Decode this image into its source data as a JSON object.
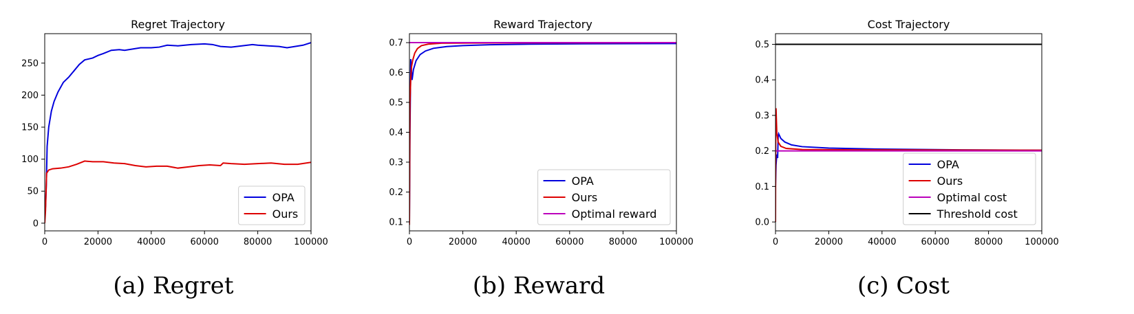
{
  "colors": {
    "OPA": "#0000dd",
    "Ours": "#dd0000",
    "Optimal reward": "#bb00bb",
    "Optimal cost": "#bb00bb",
    "Threshold cost": "#000000"
  },
  "chart_data": [
    {
      "type": "line",
      "title": "Regret Trajectory",
      "caption": "(a) Regret",
      "xlim": [
        0,
        100000
      ],
      "ylim": [
        -12,
        296
      ],
      "xticks": [
        0,
        20000,
        40000,
        60000,
        80000,
        100000
      ],
      "yticks": [
        0,
        50,
        100,
        150,
        200,
        250
      ],
      "grid": false,
      "legend_position": "lower-right",
      "series": [
        {
          "name": "OPA",
          "points": [
            [
              0,
              20
            ],
            [
              300,
              25
            ],
            [
              600,
              60
            ],
            [
              900,
              120
            ],
            [
              1500,
              150
            ],
            [
              2500,
              175
            ],
            [
              3500,
              190
            ],
            [
              5000,
              205
            ],
            [
              7000,
              220
            ],
            [
              9000,
              228
            ],
            [
              11000,
              238
            ],
            [
              13000,
              248
            ],
            [
              15000,
              255
            ],
            [
              18000,
              258
            ],
            [
              20000,
              262
            ],
            [
              22000,
              265
            ],
            [
              25000,
              270
            ],
            [
              28000,
              271
            ],
            [
              30000,
              270
            ],
            [
              33000,
              272
            ],
            [
              36000,
              274
            ],
            [
              40000,
              274
            ],
            [
              43000,
              275
            ],
            [
              46000,
              278
            ],
            [
              50000,
              277
            ],
            [
              55000,
              279
            ],
            [
              60000,
              280
            ],
            [
              63000,
              279
            ],
            [
              66000,
              276
            ],
            [
              70000,
              275
            ],
            [
              74000,
              277
            ],
            [
              78000,
              279
            ],
            [
              80000,
              278
            ],
            [
              84000,
              277
            ],
            [
              88000,
              276
            ],
            [
              91000,
              274
            ],
            [
              94000,
              276
            ],
            [
              97000,
              278
            ],
            [
              100000,
              282
            ]
          ]
        },
        {
          "name": "Ours",
          "points": [
            [
              0,
              0
            ],
            [
              300,
              20
            ],
            [
              700,
              78
            ],
            [
              1500,
              83
            ],
            [
              3000,
              85
            ],
            [
              6000,
              86
            ],
            [
              9000,
              88
            ],
            [
              12000,
              92
            ],
            [
              15000,
              97
            ],
            [
              18000,
              96
            ],
            [
              22000,
              96
            ],
            [
              26000,
              94
            ],
            [
              30000,
              93
            ],
            [
              34000,
              90
            ],
            [
              38000,
              88
            ],
            [
              42000,
              89
            ],
            [
              46000,
              89
            ],
            [
              50000,
              86
            ],
            [
              54000,
              88
            ],
            [
              58000,
              90
            ],
            [
              62000,
              91
            ],
            [
              66000,
              90
            ],
            [
              67000,
              94
            ],
            [
              70000,
              93
            ],
            [
              75000,
              92
            ],
            [
              80000,
              93
            ],
            [
              85000,
              94
            ],
            [
              90000,
              92
            ],
            [
              95000,
              92
            ],
            [
              100000,
              95
            ]
          ]
        }
      ]
    },
    {
      "type": "line",
      "title": "Reward Trajectory",
      "caption": "(b) Reward",
      "xlim": [
        0,
        100000
      ],
      "ylim": [
        0.07,
        0.73
      ],
      "xticks": [
        0,
        20000,
        40000,
        60000,
        80000,
        100000
      ],
      "yticks": [
        0.1,
        0.2,
        0.3,
        0.4,
        0.5,
        0.6,
        0.7
      ],
      "grid": false,
      "legend_position": "lower-right",
      "series": [
        {
          "name": "OPA",
          "points": [
            [
              0,
              0.1
            ],
            [
              200,
              0.4
            ],
            [
              500,
              0.645
            ],
            [
              800,
              0.6
            ],
            [
              1000,
              0.575
            ],
            [
              1500,
              0.61
            ],
            [
              2500,
              0.64
            ],
            [
              4000,
              0.66
            ],
            [
              6000,
              0.672
            ],
            [
              9000,
              0.681
            ],
            [
              14000,
              0.687
            ],
            [
              20000,
              0.69
            ],
            [
              30000,
              0.693
            ],
            [
              45000,
              0.695
            ],
            [
              65000,
              0.696
            ],
            [
              100000,
              0.697
            ]
          ]
        },
        {
          "name": "Ours",
          "points": [
            [
              0,
              0.09
            ],
            [
              200,
              0.5
            ],
            [
              500,
              0.58
            ],
            [
              800,
              0.62
            ],
            [
              1200,
              0.64
            ],
            [
              2000,
              0.665
            ],
            [
              3000,
              0.68
            ],
            [
              4500,
              0.69
            ],
            [
              7000,
              0.695
            ],
            [
              12000,
              0.698
            ],
            [
              30000,
              0.699
            ],
            [
              100000,
              0.7
            ]
          ]
        },
        {
          "name": "Optimal reward",
          "points": [
            [
              0,
              0.7
            ],
            [
              100000,
              0.7
            ]
          ]
        }
      ]
    },
    {
      "type": "line",
      "title": "Cost Trajectory",
      "caption": "(c) Cost",
      "xlim": [
        0,
        100000
      ],
      "ylim": [
        -0.025,
        0.53
      ],
      "xticks": [
        0,
        20000,
        40000,
        60000,
        80000,
        100000
      ],
      "yticks": [
        0.0,
        0.1,
        0.2,
        0.3,
        0.4,
        0.5
      ],
      "grid": false,
      "legend_position": "lower-right",
      "series": [
        {
          "name": "OPA",
          "points": [
            [
              0,
              0.1
            ],
            [
              200,
              0.16
            ],
            [
              500,
              0.19
            ],
            [
              800,
              0.18
            ],
            [
              1000,
              0.24
            ],
            [
              1200,
              0.248
            ],
            [
              2000,
              0.235
            ],
            [
              3500,
              0.225
            ],
            [
              6000,
              0.217
            ],
            [
              10000,
              0.212
            ],
            [
              20000,
              0.208
            ],
            [
              40000,
              0.205
            ],
            [
              70000,
              0.203
            ],
            [
              100000,
              0.202
            ]
          ]
        },
        {
          "name": "Ours",
          "points": [
            [
              0,
              0.0
            ],
            [
              100,
              0.3
            ],
            [
              200,
              0.32
            ],
            [
              500,
              0.25
            ],
            [
              1000,
              0.225
            ],
            [
              2000,
              0.213
            ],
            [
              4000,
              0.207
            ],
            [
              10000,
              0.204
            ],
            [
              30000,
              0.203
            ],
            [
              100000,
              0.202
            ]
          ]
        },
        {
          "name": "Optimal cost",
          "points": [
            [
              0,
              0.2
            ],
            [
              100000,
              0.2
            ]
          ]
        },
        {
          "name": "Threshold cost",
          "points": [
            [
              0,
              0.5
            ],
            [
              100000,
              0.5
            ]
          ]
        }
      ]
    }
  ]
}
